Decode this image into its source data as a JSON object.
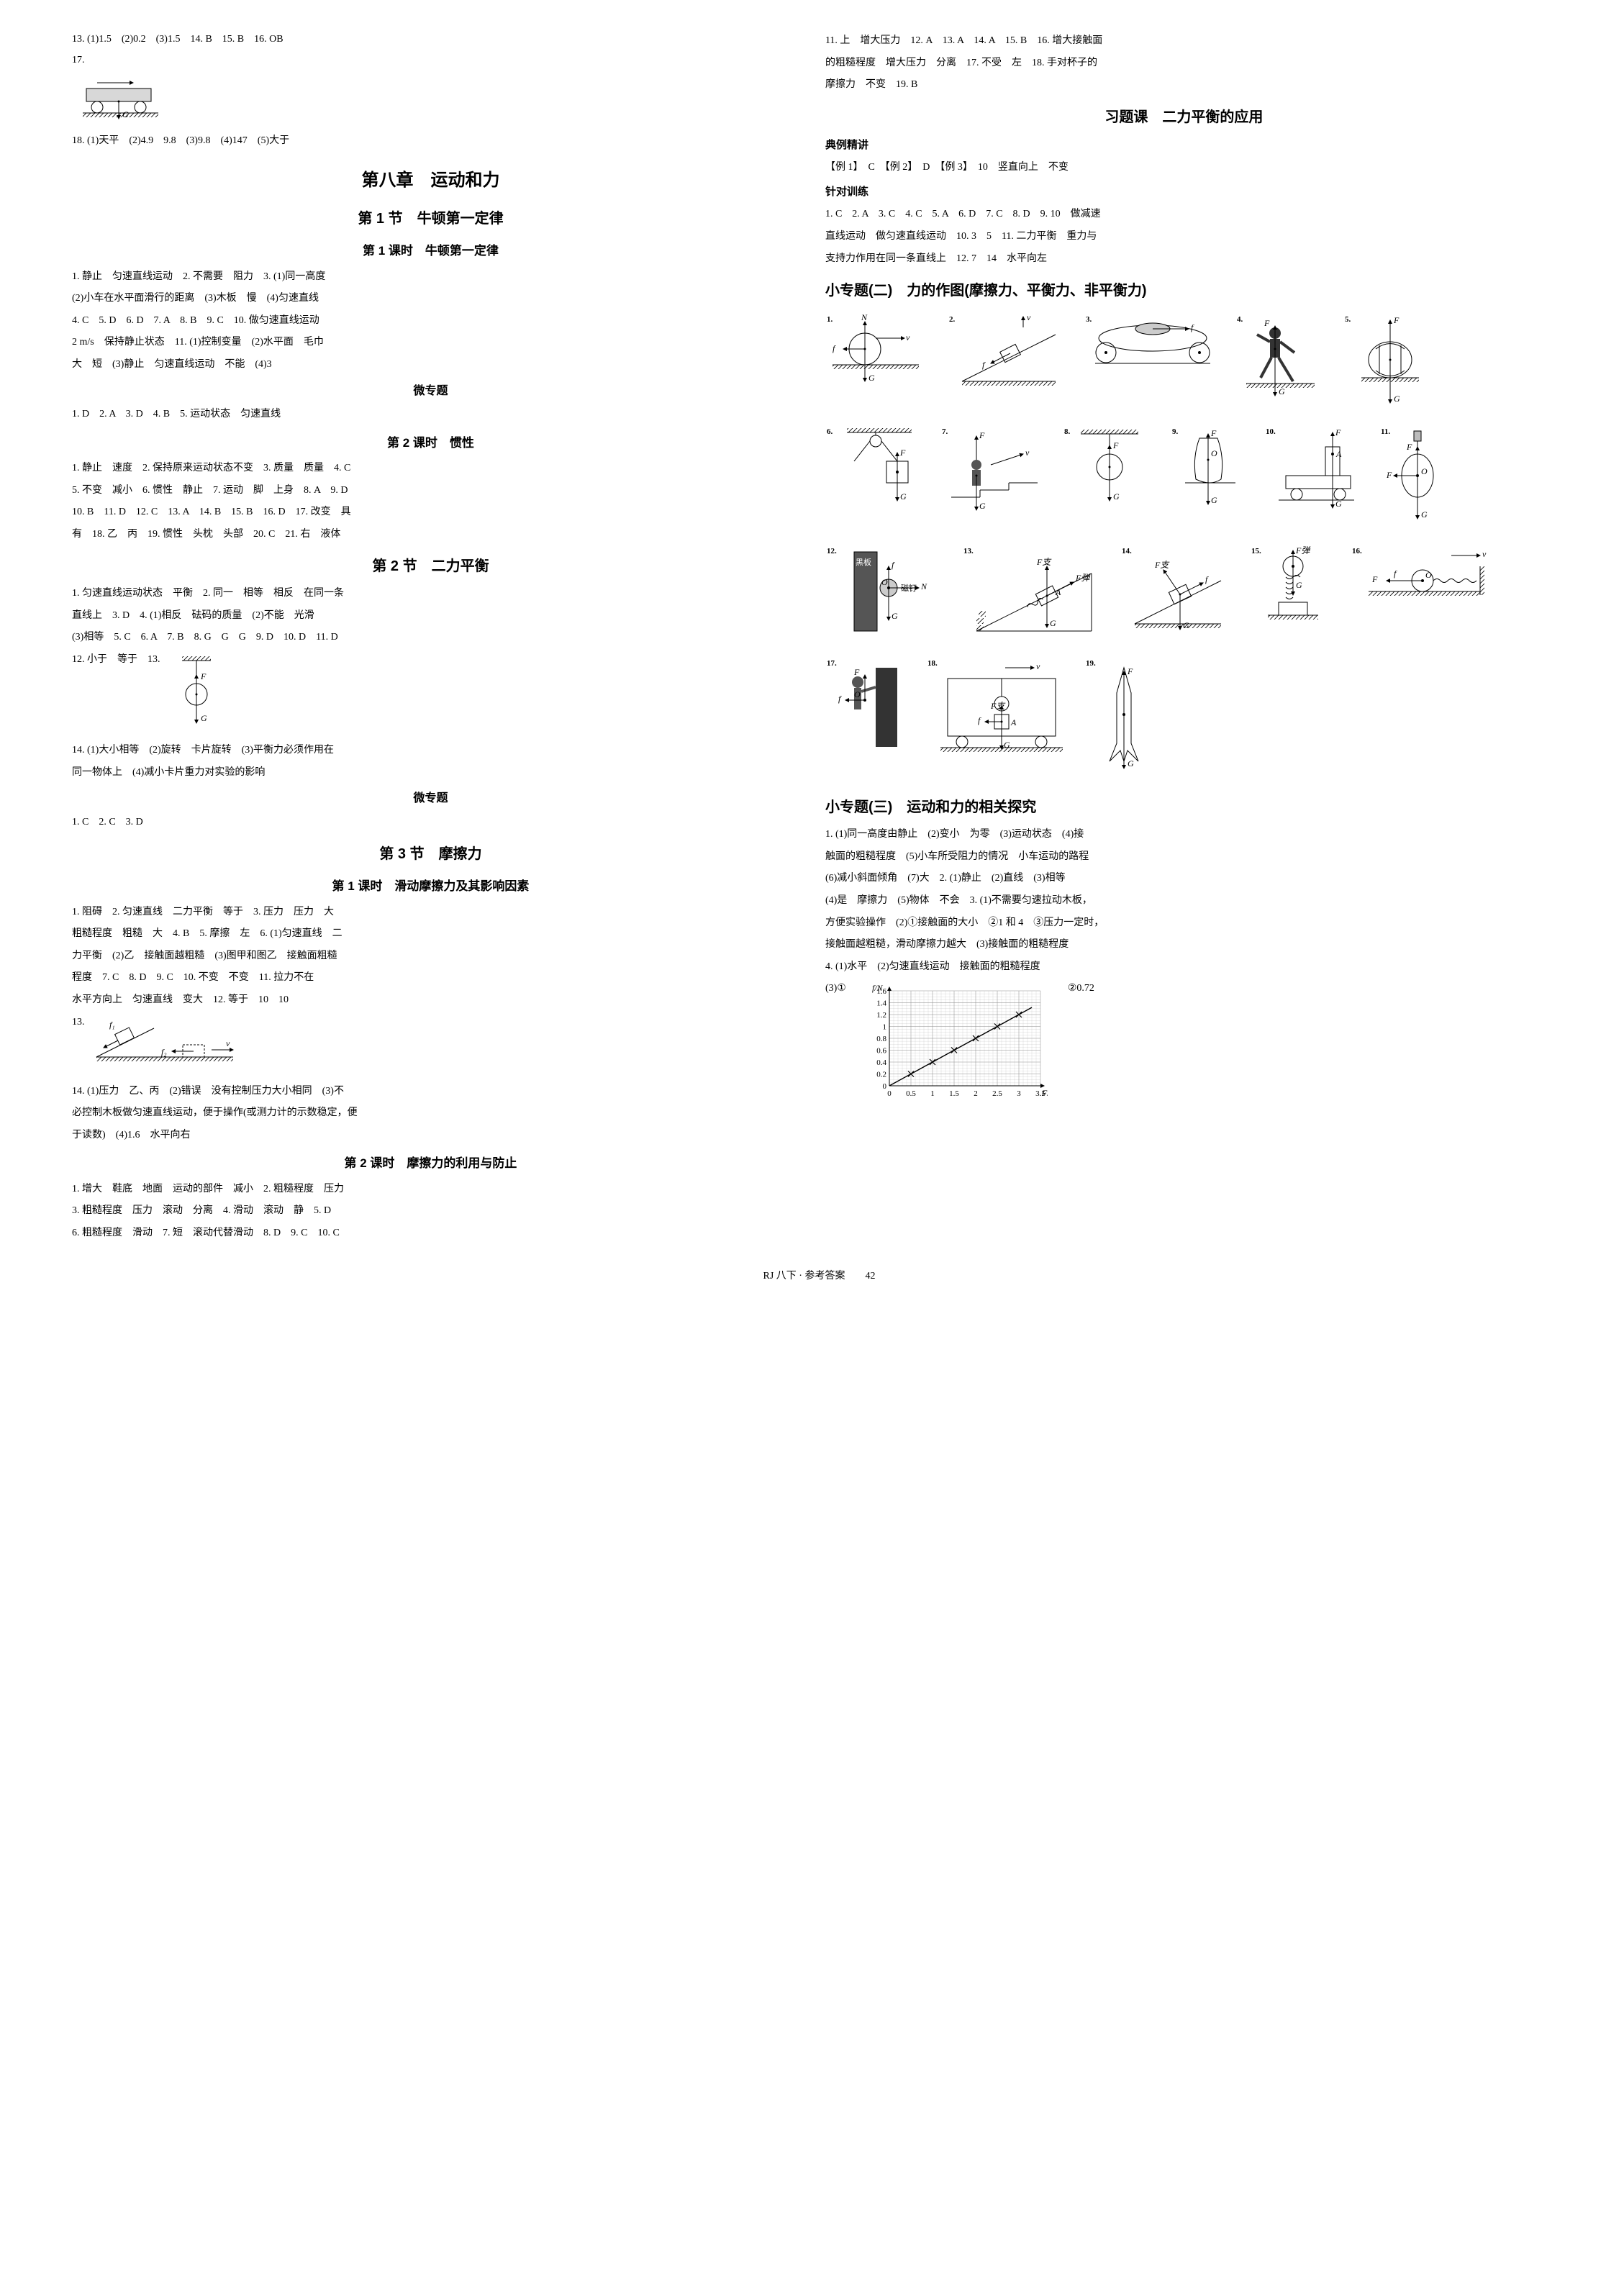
{
  "left": {
    "line1": "13. (1)1.5　(2)0.2　(3)1.5　14. B　15. B　16. OB",
    "line2": "17.",
    "line3": "18. (1)天平　(2)4.9　9.8　(3)9.8　(4)147　(5)大于",
    "chapter8": "第八章　运动和力",
    "sec1": "第 1 节　牛顿第一定律",
    "lesson1_1": "第 1 课时　牛顿第一定律",
    "p1_1": "1. 静止　匀速直线运动　2. 不需要　阻力　3. (1)同一高度",
    "p1_2": "(2)小车在水平面滑行的距离　(3)木板　慢　(4)匀速直线",
    "p1_3": "4. C　5. D　6. D　7. A　8. B　9. C　10. 做匀速直线运动",
    "p1_4": "2 m/s　保持静止状态　11. (1)控制变量　(2)水平面　毛巾",
    "p1_5": "大　短　(3)静止　匀速直线运动　不能　(4)3",
    "micro1": "微专题",
    "m1": "1. D　2. A　3. D　4. B　5. 运动状态　匀速直线",
    "lesson1_2": "第 2 课时　惯性",
    "g1": "1. 静止　速度　2. 保持原来运动状态不变　3. 质量　质量　4. C",
    "g2": "5. 不变　减小　6. 惯性　静止　7. 运动　脚　上身　8. A　9. D",
    "g3": "10. B　11. D　12. C　13. A　14. B　15. B　16. D　17. 改变　具",
    "g4": "有　18. 乙　丙　19. 惯性　头枕　头部　20. C　21. 右　液体",
    "sec2": "第 2 节　二力平衡",
    "e1": "1. 匀速直线运动状态　平衡　2. 同一　相等　相反　在同一条",
    "e2": "直线上　3. D　4. (1)相反　砝码的质量　(2)不能　光滑",
    "e3": "(3)相等　5. C　6. A　7. B　8. G　G　G　9. D　10. D　11. D",
    "e4": "12. 小于　等于　13.",
    "e5": "14. (1)大小相等　(2)旋转　卡片旋转　(3)平衡力必须作用在",
    "e6": "同一物体上　(4)减小卡片重力对实验的影响",
    "micro2": "微专题",
    "m2": "1. C　2. C　3. D",
    "sec3": "第 3 节　摩擦力",
    "lesson3_1": "第 1 课时　滑动摩擦力及其影响因素",
    "f1": "1. 阻碍　2. 匀速直线　二力平衡　等于　3. 压力　压力　大",
    "f2": "粗糙程度　粗糙　大　4. B　5. 摩擦　左　6. (1)匀速直线　二",
    "f3": "力平衡　(2)乙　接触面越粗糙　(3)图甲和图乙　接触面粗糙",
    "f4": "程度　7. C　8. D　9. C　10. 不变　不变　11. 拉力不在",
    "f5": "水平方向上　匀速直线　变大　12. 等于　10　10",
    "f6": "13.",
    "f7": "14. (1)压力　乙、丙　(2)错误　没有控制压力大小相同　(3)不",
    "f8": "必控制木板做匀速直线运动，便于操作(或测力计的示数稳定，便",
    "f9": "于读数)　(4)1.6　水平向右",
    "lesson3_2": "第 2 课时　摩擦力的利用与防止",
    "h1": "1. 增大　鞋底　地面　运动的部件　减小　2. 粗糙程度　压力",
    "h2": "3. 粗糙程度　压力　滚动　分离　4. 滑动　滚动　静　5. D",
    "h3": "6. 粗糙程度　滑动　7. 短　滚动代替滑动　8. D　9. C　10. C"
  },
  "right": {
    "r1": "11. 上　增大压力　12. A　13. A　14. A　15. B　16. 增大接触面",
    "r2": "的粗糙程度　增大压力　分离　17. 不受　左　18. 手对杯子的",
    "r3": "摩擦力　不变　19. B",
    "xtk": "习题课　二力平衡的应用",
    "dljj": "典例精讲",
    "x1": "【例 1】　C　【例 2】　D　【例 3】　10　竖直向上　不变",
    "zdxl": "针对训练",
    "z1": "1. C　2. A　3. C　4. C　5. A　6. D　7. C　8. D　9. 10　做减速",
    "z2": "直线运动　做匀速直线运动　10. 3　5　11. 二力平衡　重力与",
    "z3": "支持力作用在同一条直线上　12. 7　14　水平向左",
    "xzt2": "小专题(二)　力的作图(摩擦力、平衡力、非平衡力)",
    "xzt3": "小专题(三)　运动和力的相关探究",
    "s1": "1. (1)同一高度由静止　(2)变小　为零　(3)运动状态　(4)接",
    "s2": "触面的粗糙程度　(5)小车所受阻力的情况　小车运动的路程",
    "s3": "(6)减小斜面倾角　(7)大　2. (1)静止　(2)直线　(3)相等",
    "s4": "(4)是　摩擦力　(5)物体　不会　3. (1)不需要匀速拉动木板，",
    "s5": "方便实验操作　(2)①接触面的大小　②1 和 4　③压力一定时，",
    "s6": "接触面越粗糙，滑动摩擦力越大　(3)接触面的粗糙程度",
    "s7": "4. (1)水平　(2)匀速直线运动　接触面的粗糙程度",
    "s8": "(3)①",
    "s8b": "②0.72",
    "chart": {
      "type": "scatter-line",
      "xlabel": "F/N",
      "ylabel": "f/N",
      "xlim": [
        0,
        3.5
      ],
      "ylim": [
        0,
        1.6
      ],
      "xticks": [
        0,
        0.5,
        1.0,
        1.5,
        2.0,
        2.5,
        3.0,
        3.5
      ],
      "yticks": [
        0,
        0.2,
        0.4,
        0.6,
        0.8,
        1.0,
        1.2,
        1.4,
        1.6
      ],
      "points": [
        [
          0.5,
          0.2
        ],
        [
          1.0,
          0.4
        ],
        [
          1.5,
          0.6
        ],
        [
          2.0,
          0.8
        ],
        [
          2.5,
          1.0
        ],
        [
          3.0,
          1.2
        ]
      ],
      "line_color": "#000000",
      "grid_color": "#888888",
      "background": "#ffffff",
      "marker": "x",
      "marker_size": 4
    }
  },
  "footer": "RJ 八下 · 参考答案　　42"
}
